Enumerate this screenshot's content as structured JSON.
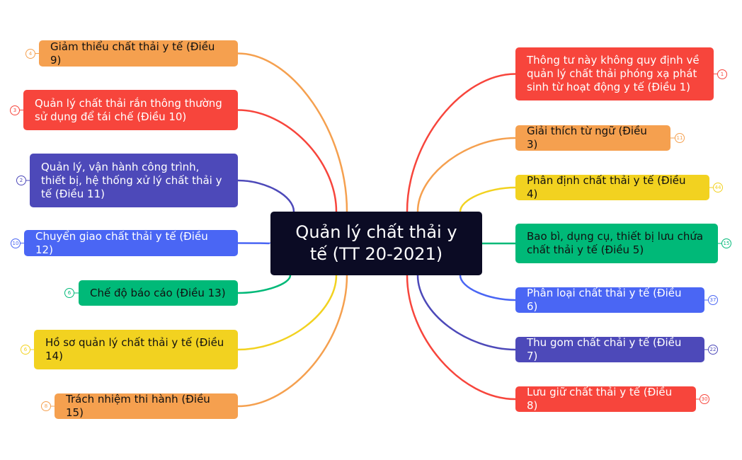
{
  "colors": {
    "orange": "#F5A04F",
    "red": "#F7453C",
    "purple": "#4D49B9",
    "blue": "#4A66F4",
    "green": "#00B978",
    "yellow": "#F2D220",
    "center": "#0B0B24"
  },
  "center": {
    "title": "Quản lý chất thải y tế (TT 20-2021)"
  },
  "left": [
    {
      "label": "Giảm thiểu chất thải y tế (Điều 9)",
      "count": "4",
      "color": "orange"
    },
    {
      "label": "Quản lý chất thải rắn thông thường sử dụng để tái chế (Điều 10)",
      "count": "3",
      "color": "red"
    },
    {
      "label": "Quản lý, vận hành công trình, thiết bị, hệ thống xử lý chất thải y tế (Điều 11)",
      "count": "2",
      "color": "purple"
    },
    {
      "label": "Chuyển giao chất thải y tế (Điều 12)",
      "count": "10",
      "color": "blue"
    },
    {
      "label": "Chế độ báo cáo (Điều 13)",
      "count": "6",
      "color": "green"
    },
    {
      "label": "Hồ sơ quản lý chất thải y tế (Điều 14)",
      "count": "6",
      "color": "yellow"
    },
    {
      "label": "Trách nhiệm thi hành (Điều 15)",
      "count": "8",
      "color": "orange"
    }
  ],
  "right": [
    {
      "label": "Thông tư này không quy định về quản lý chất thải phóng xạ phát sinh từ hoạt động y tế (Điều 1)",
      "count": "1",
      "color": "red"
    },
    {
      "label": "Giải thích từ ngữ (Điều 3)",
      "count": "11",
      "color": "orange"
    },
    {
      "label": "Phân định chất thải y tế (Điều 4)",
      "count": "44",
      "color": "yellow"
    },
    {
      "label": "Bao bì, dụng cụ, thiết bị lưu chứa chất thải y tế (Điều 5)",
      "count": "15",
      "color": "green"
    },
    {
      "label": "Phân loại chất thải y tế (Điều 6)",
      "count": "37",
      "color": "blue"
    },
    {
      "label": "Thu gom chất chải y tế (Điều 7)",
      "count": "22",
      "color": "purple"
    },
    {
      "label": "Lưu giữ chất thải y tế (Điều 8)",
      "count": "30",
      "color": "red"
    }
  ]
}
